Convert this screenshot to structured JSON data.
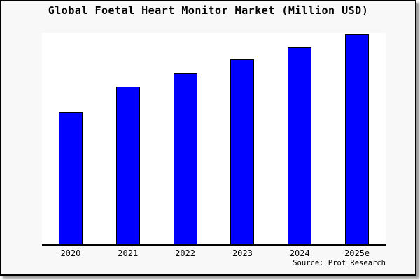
{
  "chart": {
    "title": "Global Foetal Heart Monitor Market (Million USD)",
    "source": "Source: Prof Research"
  },
  "chart_data": {
    "type": "bar",
    "title": "Global Foetal Heart Monitor Market (Million USD)",
    "categories": [
      "2020",
      "2021",
      "2022",
      "2023",
      "2024",
      "2025e"
    ],
    "values": [
      63,
      75,
      81.5,
      88,
      94,
      100
    ],
    "values_unit": "relative bar height, percent of tallest (2025e) bar; no y-axis scale shown",
    "xlabel": "",
    "ylabel": "",
    "legend": false,
    "grid": false,
    "y_axis_visible": false,
    "annotations": [
      "Source: Prof Research"
    ],
    "colors": {
      "bar_fill": "#0000ff",
      "bar_border": "#000000",
      "plot_background": "#ffffff",
      "card_background": "#f8f8f8",
      "axis_line": "#000000",
      "text": "#000000"
    }
  }
}
